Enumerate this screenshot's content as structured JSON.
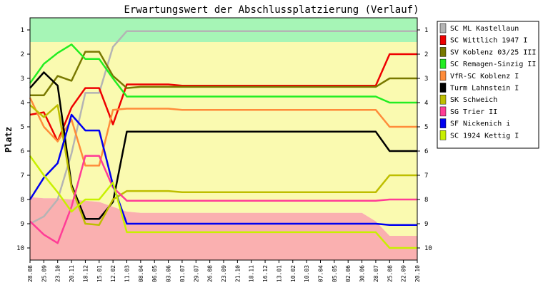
{
  "chart_data": {
    "type": "line",
    "title": "Erwartungswert der Abschlussplatzierung (Verlauf)",
    "xlabel": "",
    "ylabel": "Platz",
    "ylim": [
      1,
      10
    ],
    "y_reversed": true,
    "y_ticks": [
      "1",
      "2",
      "3",
      "4",
      "5",
      "6",
      "7",
      "8",
      "9",
      "10"
    ],
    "grid": false,
    "legend_position": "right",
    "x": [
      "28.08",
      "25.09",
      "23.10",
      "20.11",
      "18.12",
      "15.01",
      "12.02",
      "11.03",
      "08.04",
      "06.05",
      "03.06",
      "01.07",
      "29.07",
      "26.08",
      "23.09",
      "21.10",
      "18.11",
      "16.12",
      "13.01",
      "10.02",
      "10.03",
      "07.04",
      "05.05",
      "02.06",
      "30.06",
      "28.07",
      "25.08",
      "22.09",
      "20.10"
    ],
    "background_bands": [
      {
        "color": "#a6f5b6",
        "lower": [
          1.5,
          1.5,
          1.5,
          1.5,
          1.5,
          1.5,
          1.5,
          1.5,
          1.5,
          1.5,
          1.5,
          1.5,
          1.5,
          1.5,
          1.5,
          1.5,
          1.5,
          1.5,
          1.5,
          1.5,
          1.5,
          1.5,
          1.5,
          1.5,
          1.5,
          1.5,
          1.5,
          1.5,
          1.5
        ]
      },
      {
        "color": "#fafab0",
        "lower": [
          7.9,
          7.95,
          7.95,
          8.0,
          8.05,
          8.1,
          8.3,
          8.5,
          8.55,
          8.55,
          8.55,
          8.55,
          8.55,
          8.55,
          8.55,
          8.55,
          8.55,
          8.55,
          8.55,
          8.55,
          8.55,
          8.55,
          8.55,
          8.55,
          8.55,
          8.9,
          9.5,
          9.5,
          9.5
        ]
      },
      {
        "color": "#fab0b0",
        "lower": [
          10.5,
          10.5,
          10.5,
          10.5,
          10.5,
          10.5,
          10.5,
          10.5,
          10.5,
          10.5,
          10.5,
          10.5,
          10.5,
          10.5,
          10.5,
          10.5,
          10.5,
          10.5,
          10.5,
          10.5,
          10.5,
          10.5,
          10.5,
          10.5,
          10.5,
          10.5,
          10.5,
          10.5,
          10.5
        ]
      }
    ],
    "series": [
      {
        "name": "SC ML Kastellaun",
        "color": "#b4b4b4",
        "values": [
          9.0,
          8.7,
          8.0,
          6.1,
          3.6,
          3.6,
          1.7,
          1.05,
          1.05,
          1.05,
          1.05,
          1.05,
          1.05,
          1.05,
          1.05,
          1.05,
          1.05,
          1.05,
          1.05,
          1.05,
          1.05,
          1.05,
          1.05,
          1.05,
          1.05,
          1.05,
          1.05,
          1.05,
          1.05
        ]
      },
      {
        "name": "SC Wittlich 1947 I",
        "color": "#ee0000",
        "values": [
          4.5,
          4.4,
          5.6,
          4.2,
          3.4,
          3.4,
          4.9,
          3.25,
          3.25,
          3.25,
          3.25,
          3.3,
          3.3,
          3.3,
          3.3,
          3.3,
          3.3,
          3.3,
          3.3,
          3.3,
          3.3,
          3.3,
          3.3,
          3.3,
          3.3,
          3.3,
          2.0,
          2.0,
          2.0
        ]
      },
      {
        "name": "SV Koblenz 03/25 III",
        "color": "#787800",
        "values": [
          3.7,
          3.7,
          2.9,
          3.1,
          1.9,
          1.9,
          2.9,
          3.4,
          3.35,
          3.35,
          3.35,
          3.35,
          3.35,
          3.35,
          3.35,
          3.35,
          3.35,
          3.35,
          3.35,
          3.35,
          3.35,
          3.35,
          3.35,
          3.35,
          3.35,
          3.35,
          3.0,
          3.0,
          3.0
        ]
      },
      {
        "name": "SC Remagen-Sinzig II",
        "color": "#22ee22",
        "values": [
          3.2,
          2.4,
          1.95,
          1.6,
          2.2,
          2.2,
          3.0,
          3.75,
          3.75,
          3.75,
          3.75,
          3.75,
          3.75,
          3.75,
          3.75,
          3.75,
          3.75,
          3.75,
          3.75,
          3.75,
          3.75,
          3.75,
          3.75,
          3.75,
          3.75,
          3.75,
          4.0,
          4.0,
          4.0
        ]
      },
      {
        "name": "VfR-SC Koblenz I",
        "color": "#ff8c3a",
        "values": [
          3.8,
          5.0,
          5.6,
          4.7,
          6.6,
          6.6,
          4.3,
          4.25,
          4.25,
          4.25,
          4.25,
          4.3,
          4.3,
          4.3,
          4.3,
          4.3,
          4.3,
          4.3,
          4.3,
          4.3,
          4.3,
          4.3,
          4.3,
          4.3,
          4.3,
          4.3,
          5.0,
          5.0,
          5.0
        ]
      },
      {
        "name": "Turm Lahnstein I",
        "color": "#000000",
        "values": [
          3.4,
          2.75,
          3.3,
          7.4,
          8.8,
          8.8,
          8.1,
          5.2,
          5.2,
          5.2,
          5.2,
          5.2,
          5.2,
          5.2,
          5.2,
          5.2,
          5.2,
          5.2,
          5.2,
          5.2,
          5.2,
          5.2,
          5.2,
          5.2,
          5.2,
          5.2,
          6.0,
          6.0,
          6.0
        ]
      },
      {
        "name": "SK Schweich",
        "color": "#bebe00",
        "values": [
          4.1,
          4.6,
          4.1,
          7.5,
          9.0,
          9.05,
          8.0,
          7.65,
          7.65,
          7.65,
          7.65,
          7.7,
          7.7,
          7.7,
          7.7,
          7.7,
          7.7,
          7.7,
          7.7,
          7.7,
          7.7,
          7.7,
          7.7,
          7.7,
          7.7,
          7.7,
          7.0,
          7.0,
          7.0
        ]
      },
      {
        "name": "SG Trier II",
        "color": "#ff3c96",
        "values": [
          8.9,
          9.45,
          9.8,
          8.3,
          6.2,
          6.2,
          7.5,
          8.05,
          8.05,
          8.05,
          8.05,
          8.05,
          8.05,
          8.05,
          8.05,
          8.05,
          8.05,
          8.05,
          8.05,
          8.05,
          8.05,
          8.05,
          8.05,
          8.05,
          8.05,
          8.05,
          8.0,
          8.0,
          8.0
        ]
      },
      {
        "name": "SF Nickenich i",
        "color": "#0000f0",
        "values": [
          8.0,
          7.1,
          6.5,
          4.5,
          5.15,
          5.15,
          7.4,
          9.0,
          9.0,
          9.0,
          9.0,
          9.0,
          9.0,
          9.0,
          9.0,
          9.0,
          9.0,
          9.0,
          9.0,
          9.0,
          9.0,
          9.0,
          9.0,
          9.0,
          9.0,
          9.0,
          9.05,
          9.05,
          9.05
        ]
      },
      {
        "name": "SC 1924 Kettig I",
        "color": "#c8f000",
        "values": [
          6.2,
          7.0,
          7.7,
          8.5,
          8.0,
          8.0,
          7.3,
          9.35,
          9.35,
          9.35,
          9.35,
          9.35,
          9.35,
          9.35,
          9.35,
          9.35,
          9.35,
          9.35,
          9.35,
          9.35,
          9.35,
          9.35,
          9.35,
          9.35,
          9.35,
          9.35,
          10.0,
          10.0,
          10.0
        ]
      }
    ]
  }
}
